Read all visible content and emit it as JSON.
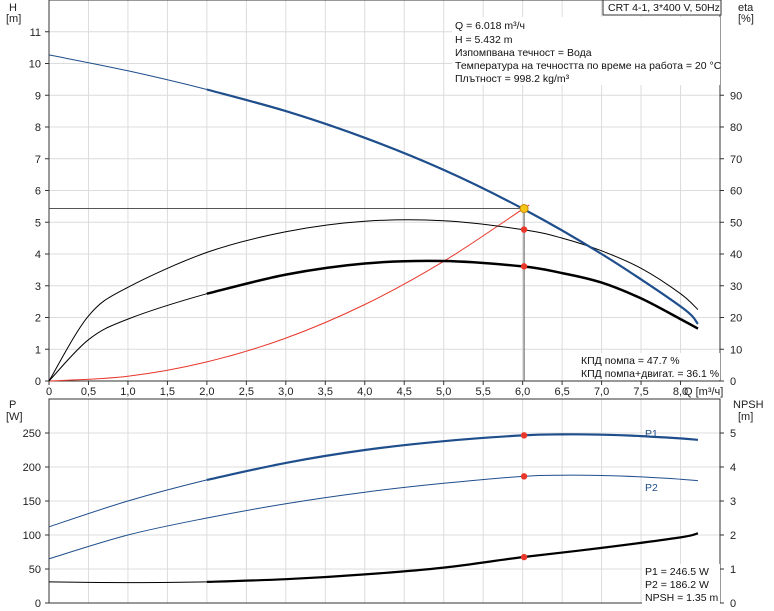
{
  "title_box": "CRT 4-1, 3*400 V, 50Hz",
  "info_top": [
    "Q = 6.018 m³/ч",
    "H = 5.432 m",
    "Изпомпвана течност = Вода",
    "Температура на течността по време на работа = 20 °C",
    "Плътност = 998.2 kg/m³"
  ],
  "info_eff": [
    "КПД помпа = 47.7 %",
    "КПД помпа+двигат. = 36.1 %"
  ],
  "info_power": [
    "P1 = 246.5 W",
    "P2 = 186.2 W",
    "NPSH = 1.35 m"
  ],
  "colors": {
    "head_curve": "#1f4e8c",
    "efficiency": "#000000",
    "system_curve": "#e8372b",
    "operating_point": "#f5c518",
    "marker": "#e8372b"
  },
  "chart_data": [
    {
      "type": "line",
      "name": "head-efficiency",
      "axes": {
        "x": {
          "label": "Q [m³/ч]",
          "range": [
            0,
            8.5
          ],
          "ticks": [
            "0",
            "0,5",
            "1,0",
            "1,5",
            "2,0",
            "2,5",
            "3,0",
            "3,5",
            "4,0",
            "4,5",
            "5,0",
            "5,5",
            "6,0",
            "6,5",
            "7,0",
            "7,5",
            "8,0"
          ]
        },
        "y_left": {
          "label_top": "H",
          "label_unit": "[m]",
          "range": [
            0,
            12
          ],
          "ticks": [
            "0",
            "1",
            "2",
            "3",
            "4",
            "5",
            "6",
            "7",
            "8",
            "9",
            "10",
            "11"
          ]
        },
        "y_right": {
          "label_top": "eta",
          "label_unit": "[%]",
          "range": [
            0,
            120
          ],
          "ticks": [
            "0",
            "10",
            "20",
            "30",
            "40",
            "50",
            "60",
            "70",
            "80",
            "90"
          ]
        }
      },
      "grid": true,
      "series": [
        {
          "id": "H",
          "axis": "left",
          "x": [
            0,
            1,
            2,
            3,
            4,
            5,
            6,
            7,
            8,
            8.22
          ],
          "y": [
            10.27,
            9.77,
            9.18,
            8.5,
            7.66,
            6.65,
            5.43,
            4.0,
            2.35,
            1.8
          ]
        },
        {
          "id": "eta_pump",
          "axis": "right",
          "x": [
            0,
            0.5,
            1,
            2,
            3,
            4,
            5,
            6,
            6.5,
            7,
            7.5,
            8,
            8.22
          ],
          "y": [
            0,
            20.5,
            29.5,
            40.5,
            47.0,
            50.3,
            50.5,
            47.7,
            45.0,
            41.0,
            35.5,
            27.5,
            22.5
          ]
        },
        {
          "id": "eta_total",
          "axis": "right",
          "x": [
            0,
            0.5,
            1,
            2,
            3,
            4,
            5,
            6,
            6.5,
            7,
            7.5,
            8,
            8.22
          ],
          "y": [
            0,
            13.0,
            19.5,
            27.5,
            33.5,
            37.0,
            37.8,
            36.1,
            34.0,
            31.0,
            26.0,
            19.5,
            16.5
          ]
        },
        {
          "id": "system",
          "axis": "left",
          "x": [
            0,
            1,
            2,
            3,
            4,
            5,
            6,
            6.018
          ],
          "y": [
            0,
            0.15,
            0.6,
            1.35,
            2.41,
            3.77,
            5.41,
            5.432
          ]
        }
      ],
      "operating_point": {
        "x": 6.018,
        "y": 5.432
      },
      "markers": [
        {
          "series": "eta_pump",
          "x": 6.018,
          "y": 47.7
        },
        {
          "series": "eta_total",
          "x": 6.018,
          "y": 36.1
        }
      ]
    },
    {
      "type": "line",
      "name": "power-npsh",
      "axes": {
        "x": {
          "range": [
            0,
            8.5
          ]
        },
        "y_left": {
          "label_top": "P",
          "label_unit": "[W]",
          "range": [
            0,
            300
          ],
          "ticks": [
            "0",
            "50",
            "100",
            "150",
            "200",
            "250"
          ]
        },
        "y_right": {
          "label_top": "NPSH",
          "label_unit": "[m]",
          "range": [
            0,
            6
          ],
          "ticks": [
            "0",
            "1",
            "2",
            "3",
            "4",
            "5"
          ]
        }
      },
      "grid": true,
      "series": [
        {
          "id": "P1",
          "label": "P1",
          "axis": "left",
          "x": [
            0,
            1,
            2,
            3,
            4,
            5,
            6,
            6.5,
            7,
            7.5,
            8,
            8.22
          ],
          "y": [
            112,
            150,
            181,
            206,
            225,
            238,
            246.5,
            248,
            247.5,
            245.5,
            242,
            240
          ]
        },
        {
          "id": "P2",
          "label": "P2",
          "axis": "left",
          "x": [
            0,
            1,
            2,
            3,
            4,
            5,
            6,
            6.5,
            7,
            7.5,
            8,
            8.22
          ],
          "y": [
            65,
            100,
            125,
            146,
            163,
            176,
            186.2,
            188,
            187.5,
            185.5,
            182,
            180
          ]
        },
        {
          "id": "NPSH",
          "axis": "right",
          "x": [
            0,
            1,
            2,
            3,
            4,
            5,
            6,
            7,
            8,
            8.22
          ],
          "y": [
            0.62,
            0.6,
            0.62,
            0.7,
            0.84,
            1.04,
            1.35,
            1.62,
            1.93,
            2.05
          ]
        }
      ],
      "markers": [
        {
          "series": "P1",
          "x": 6.018,
          "y": 246.5
        },
        {
          "series": "P2",
          "x": 6.018,
          "y": 186.2
        },
        {
          "series": "NPSH",
          "x": 6.018,
          "y": 1.35
        }
      ]
    }
  ]
}
